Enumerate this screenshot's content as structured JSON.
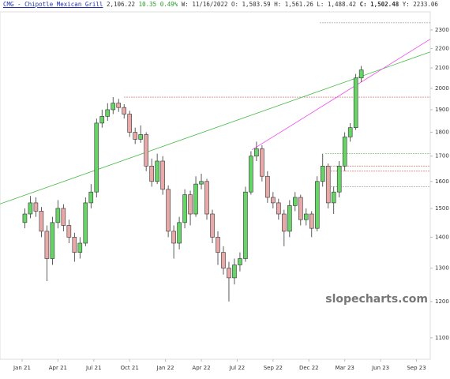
{
  "header": {
    "symbol": "CMG - Chipotle Mexican Grill",
    "last": "2,106.22",
    "change": "10.35",
    "change_pct": "0.49%",
    "week": "W: 11/16/2022",
    "open": "O: 1,503.59",
    "high": "H: 1,561.26",
    "low": "L: 1,488.42",
    "close": "C: 1,502.48",
    "cursor": "Y:  2233.06"
  },
  "watermark": "slopecharts.com",
  "chart_data": {
    "type": "candlestick",
    "log_scale": true,
    "up_color": "#66d466",
    "down_color": "#e9a9a9",
    "xlim": [
      -8,
      148
    ],
    "ylim": [
      1045,
      2402
    ],
    "xticks": [
      {
        "value": 0,
        "label": "Jan 21"
      },
      {
        "value": 13,
        "label": "Apr 21"
      },
      {
        "value": 26,
        "label": "Jul 21"
      },
      {
        "value": 39,
        "label": "Oct 21"
      },
      {
        "value": 52,
        "label": "Jan 22"
      },
      {
        "value": 65,
        "label": "Apr 22"
      },
      {
        "value": 78,
        "label": "Jul 22"
      },
      {
        "value": 91,
        "label": "Sep 22"
      },
      {
        "value": 104,
        "label": "Dec 22"
      },
      {
        "value": 117,
        "label": "Mar 23"
      },
      {
        "value": 130,
        "label": "Jun 23"
      },
      {
        "value": 143,
        "label": "Sep 23"
      }
    ],
    "yticks": [
      1100,
      1200,
      1300,
      1400,
      1500,
      1600,
      1700,
      1800,
      1900,
      2000,
      2100,
      2200,
      2300
    ],
    "x": [
      1,
      3,
      5,
      7,
      9,
      11,
      13,
      15,
      17,
      19,
      21,
      23,
      25,
      27,
      29,
      31,
      33,
      35,
      37,
      39,
      41,
      43,
      45,
      47,
      49,
      51,
      53,
      55,
      57,
      59,
      61,
      63,
      65,
      67,
      69,
      71,
      73,
      75,
      77,
      79,
      81,
      83,
      85,
      87,
      89,
      91,
      93,
      95,
      97,
      99,
      101,
      103,
      105,
      107,
      109,
      111,
      113,
      115,
      117,
      119,
      121,
      123
    ],
    "open": [
      1450,
      1480,
      1520,
      1490,
      1420,
      1330,
      1450,
      1500,
      1440,
      1400,
      1350,
      1380,
      1520,
      1560,
      1840,
      1870,
      1900,
      1930,
      1910,
      1880,
      1800,
      1770,
      1790,
      1660,
      1600,
      1680,
      1570,
      1420,
      1380,
      1450,
      1550,
      1480,
      1590,
      1600,
      1480,
      1400,
      1350,
      1300,
      1270,
      1310,
      1330,
      1560,
      1700,
      1730,
      1620,
      1540,
      1520,
      1480,
      1420,
      1510,
      1540,
      1460,
      1480,
      1430,
      1600,
      1660,
      1520,
      1560,
      1660,
      1780,
      1820,
      2050
    ],
    "high": [
      1500,
      1545,
      1540,
      1505,
      1440,
      1470,
      1530,
      1515,
      1460,
      1415,
      1400,
      1540,
      1590,
      1860,
      1900,
      1930,
      1958,
      1950,
      1925,
      1895,
      1820,
      1830,
      1800,
      1690,
      1710,
      1700,
      1585,
      1440,
      1470,
      1570,
      1565,
      1620,
      1630,
      1610,
      1495,
      1420,
      1370,
      1320,
      1330,
      1350,
      1580,
      1720,
      1760,
      1745,
      1640,
      1560,
      1535,
      1495,
      1530,
      1560,
      1550,
      1500,
      1490,
      1620,
      1710,
      1670,
      1580,
      1680,
      1800,
      1840,
      2070,
      2110
    ],
    "low": [
      1430,
      1465,
      1470,
      1400,
      1260,
      1310,
      1430,
      1420,
      1380,
      1320,
      1330,
      1370,
      1500,
      1540,
      1820,
      1850,
      1880,
      1890,
      1860,
      1780,
      1750,
      1755,
      1640,
      1580,
      1590,
      1550,
      1400,
      1330,
      1360,
      1430,
      1440,
      1470,
      1570,
      1460,
      1380,
      1310,
      1280,
      1200,
      1250,
      1290,
      1320,
      1550,
      1680,
      1600,
      1520,
      1500,
      1460,
      1370,
      1400,
      1490,
      1440,
      1440,
      1400,
      1420,
      1580,
      1500,
      1480,
      1540,
      1640,
      1760,
      1810,
      2030
    ],
    "close": [
      1480,
      1520,
      1490,
      1420,
      1330,
      1450,
      1500,
      1440,
      1400,
      1350,
      1380,
      1520,
      1560,
      1840,
      1870,
      1900,
      1930,
      1910,
      1880,
      1800,
      1770,
      1790,
      1660,
      1600,
      1680,
      1570,
      1420,
      1380,
      1450,
      1550,
      1480,
      1590,
      1600,
      1480,
      1400,
      1350,
      1300,
      1270,
      1310,
      1330,
      1560,
      1700,
      1730,
      1620,
      1540,
      1520,
      1480,
      1420,
      1510,
      1540,
      1460,
      1480,
      1430,
      1600,
      1660,
      1520,
      1560,
      1660,
      1780,
      1820,
      2050,
      2090
    ],
    "trendlines": [
      {
        "color": "#44bb44",
        "x": [
          -8,
          148
        ],
        "y": [
          1516,
          2182
        ]
      },
      {
        "color": "#ee44ee",
        "x": [
          83.4,
          148
        ],
        "y": [
          1726,
          2250
        ]
      }
    ],
    "levels": [
      {
        "color": "#cc6666",
        "from": 37,
        "value": 1958
      },
      {
        "color": "#999999",
        "from": 108,
        "value": 2340
      },
      {
        "color": "#44bb44",
        "from": 110,
        "value": 1710
      },
      {
        "color": "#cc6666",
        "from": 112,
        "value": 1660
      },
      {
        "color": "#cc4444",
        "from": 112,
        "value": 1640
      },
      {
        "color": "#999999",
        "from": 112,
        "value": 1580
      }
    ]
  }
}
